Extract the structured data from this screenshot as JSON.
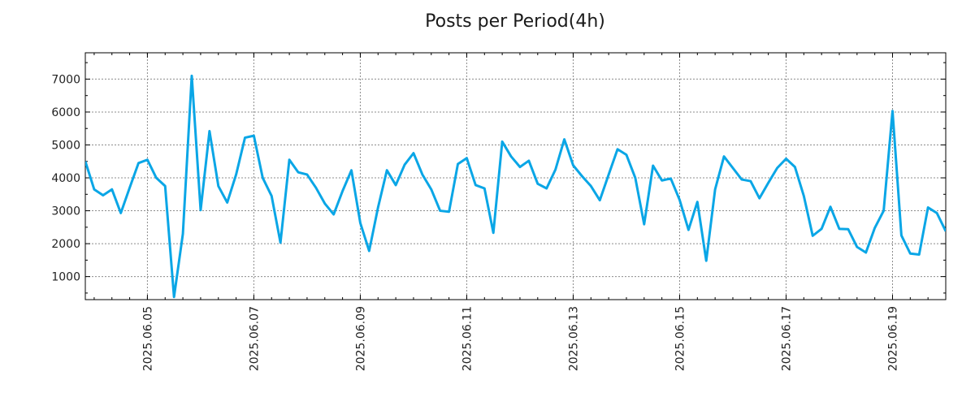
{
  "chart_data": {
    "type": "line",
    "title": "Posts per Period(4h)",
    "xlabel": "",
    "ylabel": "",
    "grid": true,
    "line_color": "#0aa6e6",
    "ylim": [
      300,
      7800
    ],
    "y_ticks": [
      1000,
      2000,
      3000,
      4000,
      5000,
      6000,
      7000
    ],
    "x_ticks": [
      {
        "label": "2025.06.05",
        "x": 7
      },
      {
        "label": "2025.06.07",
        "x": 19
      },
      {
        "label": "2025.06.09",
        "x": 31
      },
      {
        "label": "2025.06.11",
        "x": 43
      },
      {
        "label": "2025.06.13",
        "x": 55
      },
      {
        "label": "2025.06.15",
        "x": 67
      },
      {
        "label": "2025.06.17",
        "x": 79
      },
      {
        "label": "2025.06.19",
        "x": 91
      }
    ],
    "xlim": [
      0,
      97
    ],
    "series": [
      {
        "name": "posts",
        "values": [
          4500,
          3650,
          3470,
          3650,
          2930,
          3700,
          4450,
          4550,
          4000,
          3750,
          380,
          2300,
          7100,
          3020,
          5420,
          3750,
          3250,
          4100,
          5220,
          5280,
          4000,
          3450,
          2030,
          4550,
          4170,
          4100,
          3700,
          3220,
          2890,
          3600,
          4230,
          2630,
          1780,
          3100,
          4230,
          3780,
          4400,
          4750,
          4100,
          3650,
          3000,
          2970,
          4420,
          4600,
          3780,
          3680,
          2330,
          5100,
          4650,
          4330,
          4520,
          3820,
          3680,
          4250,
          5170,
          4380,
          4050,
          3750,
          3320,
          4100,
          4870,
          4700,
          4000,
          2590,
          4370,
          3920,
          3980,
          3330,
          2420,
          3270,
          1480,
          3650,
          4650,
          4300,
          3950,
          3900,
          3380,
          3850,
          4300,
          4580,
          4330,
          3450,
          2240,
          2450,
          3120,
          2450,
          2440,
          1900,
          1730,
          2480,
          3000,
          6030,
          2250,
          1700,
          1670,
          3100,
          2930,
          2380
        ]
      }
    ]
  }
}
